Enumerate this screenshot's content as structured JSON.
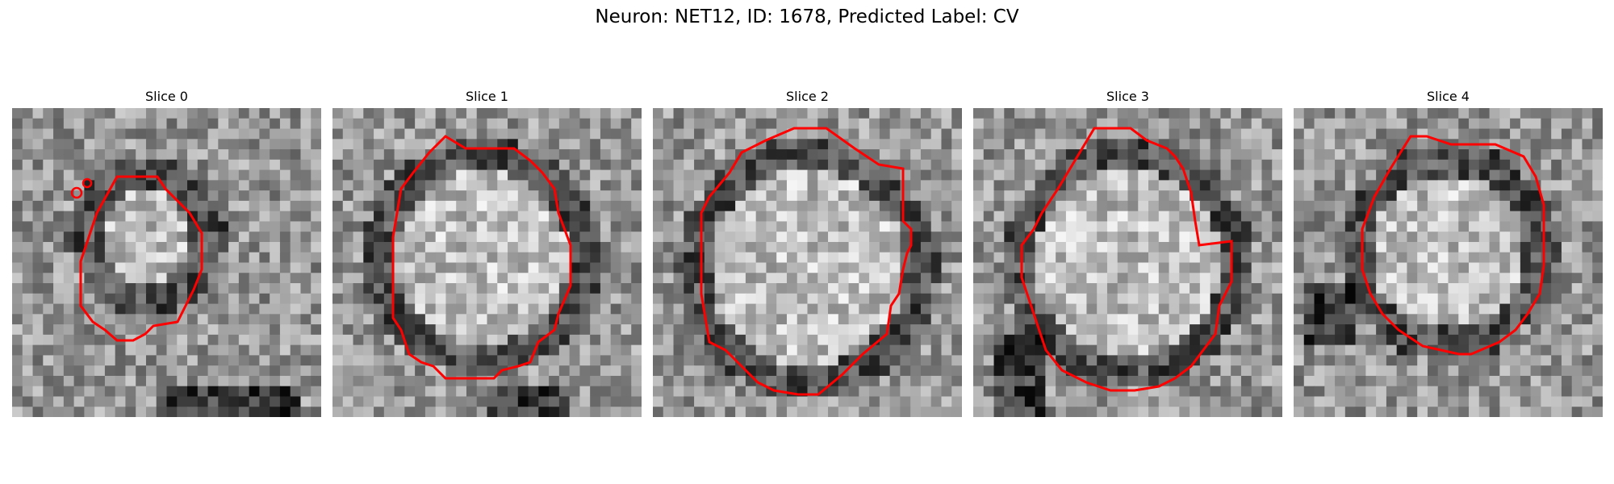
{
  "figure": {
    "title": "Neuron: NET12, ID: 1678, Predicted Label: CV"
  },
  "panels": [
    {
      "title": "Slice 0"
    },
    {
      "title": "Slice 1"
    },
    {
      "title": "Slice 2"
    },
    {
      "title": "Slice 3"
    },
    {
      "title": "Slice 4"
    }
  ],
  "style": {
    "contour_color": "#ff0000",
    "colormap": "gray"
  }
}
